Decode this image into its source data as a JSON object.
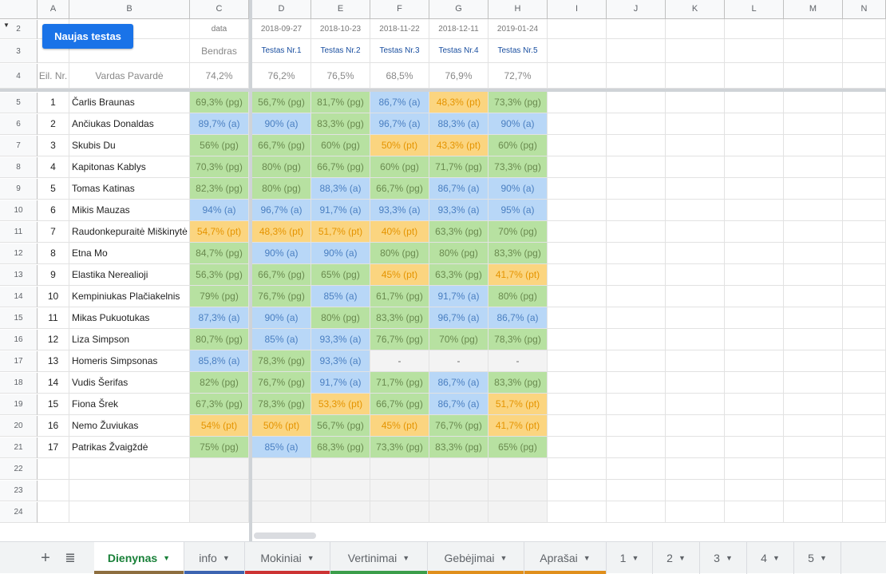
{
  "columns": [
    "A",
    "B",
    "C",
    "D",
    "E",
    "F",
    "G",
    "H",
    "I",
    "J",
    "K",
    "L",
    "M",
    "N"
  ],
  "row_numbers": [
    "2",
    "3",
    "4",
    "5",
    "6",
    "7",
    "8",
    "9",
    "10",
    "11",
    "12",
    "13",
    "14",
    "15",
    "16",
    "17",
    "18",
    "19",
    "20",
    "21",
    "22",
    "23",
    "24"
  ],
  "button": {
    "label": "Naujas testas"
  },
  "header": {
    "data_label": "data",
    "dates": [
      "2018-09-27",
      "2018-10-23",
      "2018-11-22",
      "2018-12-11",
      "2019-01-24"
    ],
    "bendras": "Bendras",
    "tests": [
      "Testas Nr.1",
      "Testas Nr.2",
      "Testas Nr.3",
      "Testas Nr.4",
      "Testas Nr.5"
    ],
    "eil_nr": "Eil. Nr.",
    "vardas": "Vardas Pavardė",
    "overall": "74,2%",
    "test_avgs": [
      "76,2%",
      "76,5%",
      "68,5%",
      "76,9%",
      "72,7%"
    ]
  },
  "students": [
    {
      "nr": "1",
      "name": "Čarlis Braunas",
      "overall": "69,3% (pg)",
      "scores": [
        "56,7% (pg)",
        "81,7% (pg)",
        "86,7% (a)",
        "48,3% (pt)",
        "73,3% (pg)"
      ]
    },
    {
      "nr": "2",
      "name": "Ančiukas Donaldas",
      "overall": "89,7% (a)",
      "scores": [
        "90% (a)",
        "83,3% (pg)",
        "96,7% (a)",
        "88,3% (a)",
        "90% (a)"
      ]
    },
    {
      "nr": "3",
      "name": "Skubis Du",
      "overall": "56% (pg)",
      "scores": [
        "66,7% (pg)",
        "60% (pg)",
        "50% (pt)",
        "43,3% (pt)",
        "60% (pg)"
      ]
    },
    {
      "nr": "4",
      "name": "Kapitonas Kablys",
      "overall": "70,3% (pg)",
      "scores": [
        "80% (pg)",
        "66,7% (pg)",
        "60% (pg)",
        "71,7% (pg)",
        "73,3% (pg)"
      ]
    },
    {
      "nr": "5",
      "name": "Tomas Katinas",
      "overall": "82,3% (pg)",
      "scores": [
        "80% (pg)",
        "88,3% (a)",
        "66,7% (pg)",
        "86,7% (a)",
        "90% (a)"
      ]
    },
    {
      "nr": "6",
      "name": "Mikis Mauzas",
      "overall": "94% (a)",
      "scores": [
        "96,7% (a)",
        "91,7% (a)",
        "93,3% (a)",
        "93,3% (a)",
        "95% (a)"
      ]
    },
    {
      "nr": "7",
      "name": "Raudonkepuraitė Miškinytė",
      "overall": "54,7% (pt)",
      "scores": [
        "48,3% (pt)",
        "51,7% (pt)",
        "40% (pt)",
        "63,3% (pg)",
        "70% (pg)"
      ]
    },
    {
      "nr": "8",
      "name": "Etna Mo",
      "overall": "84,7% (pg)",
      "scores": [
        "90% (a)",
        "90% (a)",
        "80% (pg)",
        "80% (pg)",
        "83,3% (pg)"
      ]
    },
    {
      "nr": "9",
      "name": "Elastika Nerealioji",
      "overall": "56,3% (pg)",
      "scores": [
        "66,7% (pg)",
        "65% (pg)",
        "45% (pt)",
        "63,3% (pg)",
        "41,7% (pt)"
      ]
    },
    {
      "nr": "10",
      "name": "Kempiniukas Plačiakelnis",
      "overall": "79% (pg)",
      "scores": [
        "76,7% (pg)",
        "85% (a)",
        "61,7% (pg)",
        "91,7% (a)",
        "80% (pg)"
      ]
    },
    {
      "nr": "11",
      "name": "Mikas Pukuotukas",
      "overall": "87,3% (a)",
      "scores": [
        "90% (a)",
        "80% (pg)",
        "83,3% (pg)",
        "96,7% (a)",
        "86,7% (a)"
      ]
    },
    {
      "nr": "12",
      "name": "Liza Simpson",
      "overall": "80,7% (pg)",
      "scores": [
        "85% (a)",
        "93,3% (a)",
        "76,7% (pg)",
        "70% (pg)",
        "78,3% (pg)"
      ]
    },
    {
      "nr": "13",
      "name": "Homeris Simpsonas",
      "overall": "85,8% (a)",
      "scores": [
        "78,3% (pg)",
        "93,3% (a)",
        "-",
        "-",
        "-"
      ]
    },
    {
      "nr": "14",
      "name": "Vudis Šerifas",
      "overall": "82% (pg)",
      "scores": [
        "76,7% (pg)",
        "91,7% (a)",
        "71,7% (pg)",
        "86,7% (a)",
        "83,3% (pg)"
      ]
    },
    {
      "nr": "15",
      "name": "Fiona Šrek",
      "overall": "67,3% (pg)",
      "scores": [
        "78,3% (pg)",
        "53,3% (pt)",
        "66,7% (pg)",
        "86,7% (a)",
        "51,7% (pt)"
      ]
    },
    {
      "nr": "16",
      "name": "Nemo Žuviukas",
      "overall": "54% (pt)",
      "scores": [
        "50% (pt)",
        "56,7% (pg)",
        "45% (pt)",
        "76,7% (pg)",
        "41,7% (pt)"
      ]
    },
    {
      "nr": "17",
      "name": "Patrikas Žvaigždė",
      "overall": "75% (pg)",
      "scores": [
        "85% (a)",
        "68,3% (pg)",
        "73,3% (pg)",
        "83,3% (pg)",
        "65% (pg)"
      ]
    }
  ],
  "tabs": [
    {
      "label": "Dienynas",
      "color": "#8d6e3f",
      "active": true
    },
    {
      "label": "info",
      "color": "#3c64b1"
    },
    {
      "label": "Mokiniai",
      "color": "#cc3333"
    },
    {
      "label": "Vertinimai",
      "color": "#3b9e4a"
    },
    {
      "label": "Gebėjimai",
      "color": "#e08f1c"
    },
    {
      "label": "Aprašai",
      "color": "#e08f1c"
    },
    {
      "label": "1"
    },
    {
      "label": "2"
    },
    {
      "label": "3"
    },
    {
      "label": "4"
    },
    {
      "label": "5"
    }
  ],
  "colors": {
    "pg": "#b7e1a1",
    "a": "#b8d7f7",
    "pt": "#fbd580",
    "accent": "#1a73e8"
  }
}
